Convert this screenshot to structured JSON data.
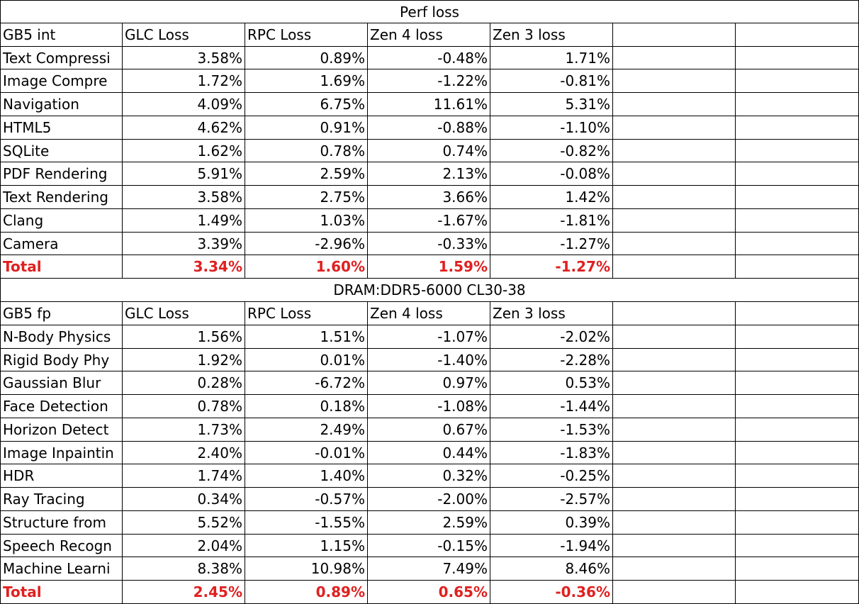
{
  "tables": [
    {
      "title": "Perf loss",
      "header": [
        "GB5 int",
        "GLC Loss",
        "RPC Loss",
        "Zen 4 loss",
        "Zen 3 loss"
      ],
      "rows": [
        [
          "Text Compressi",
          "3.58%",
          "0.89%",
          "-0.48%",
          "1.71%"
        ],
        [
          "Image Compre",
          "1.72%",
          "1.69%",
          "-1.22%",
          "-0.81%"
        ],
        [
          "Navigation",
          "4.09%",
          "6.75%",
          "11.61%",
          "5.31%"
        ],
        [
          "HTML5",
          "4.62%",
          "0.91%",
          "-0.88%",
          "-1.10%"
        ],
        [
          "SQLite",
          "1.62%",
          "0.78%",
          "0.74%",
          "-0.82%"
        ],
        [
          "PDF Rendering",
          "5.91%",
          "2.59%",
          "2.13%",
          "-0.08%"
        ],
        [
          "Text Rendering",
          "3.58%",
          "2.75%",
          "3.66%",
          "1.42%"
        ],
        [
          "Clang",
          "1.49%",
          "1.03%",
          "-1.67%",
          "-1.81%"
        ],
        [
          "Camera",
          "3.39%",
          "-2.96%",
          "-0.33%",
          "-1.27%"
        ]
      ],
      "total": [
        "Total",
        "3.34%",
        "1.60%",
        "1.59%",
        "-1.27%"
      ]
    },
    {
      "title": "DRAM:DDR5-6000 CL30-38",
      "header": [
        "GB5 fp",
        "GLC Loss",
        "RPC Loss",
        "Zen 4 loss",
        "Zen 3 loss"
      ],
      "rows": [
        [
          "N-Body Physics",
          "1.56%",
          "1.51%",
          "-1.07%",
          "-2.02%"
        ],
        [
          "Rigid Body Phy",
          "1.92%",
          "0.01%",
          "-1.40%",
          "-2.28%"
        ],
        [
          "Gaussian Blur",
          "0.28%",
          "-6.72%",
          "0.97%",
          "0.53%"
        ],
        [
          "Face Detection",
          "0.78%",
          "0.18%",
          "-1.08%",
          "-1.44%"
        ],
        [
          "Horizon Detect",
          "1.73%",
          "2.49%",
          "0.67%",
          "-1.53%"
        ],
        [
          "Image Inpaintin",
          "2.40%",
          "-0.01%",
          "0.44%",
          "-1.83%"
        ],
        [
          "HDR",
          "1.74%",
          "1.40%",
          "0.32%",
          "-0.25%"
        ],
        [
          "Ray Tracing",
          "0.34%",
          "-0.57%",
          "-2.00%",
          "-2.57%"
        ],
        [
          "Structure from",
          "5.52%",
          "-1.55%",
          "2.59%",
          "0.39%"
        ],
        [
          "Speech Recogn",
          "2.04%",
          "1.15%",
          "-0.15%",
          "-1.94%"
        ],
        [
          "Machine Learni",
          "8.38%",
          "10.98%",
          "7.49%",
          "8.46%"
        ]
      ],
      "total": [
        "Total",
        "2.45%",
        "0.89%",
        "0.65%",
        "-0.36%"
      ]
    }
  ]
}
